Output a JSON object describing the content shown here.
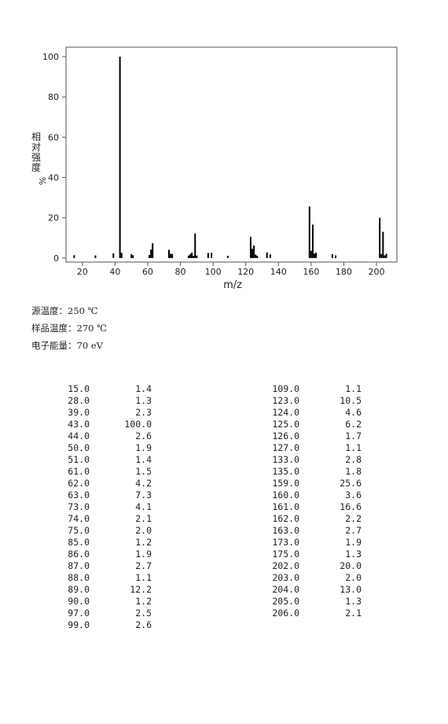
{
  "chart_data": {
    "type": "bar",
    "xlabel": "m/z",
    "ylabel_chars": [
      "相",
      "对",
      "强",
      "度"
    ],
    "ylabel_unit": "%",
    "x": [
      15,
      28,
      39,
      43,
      44,
      50,
      51,
      61,
      62,
      63,
      73,
      74,
      75,
      85,
      86,
      87,
      88,
      89,
      90,
      97,
      99,
      109,
      123,
      124,
      125,
      126,
      127,
      133,
      135,
      159,
      160,
      161,
      162,
      163,
      173,
      175,
      202,
      203,
      204,
      205,
      206
    ],
    "x_labels": [
      "15.0",
      "28.0",
      "39.0",
      "43.0",
      "44.0",
      "50.0",
      "51.0",
      "61.0",
      "62.0",
      "63.0",
      "73.0",
      "74.0",
      "75.0",
      "85.0",
      "86.0",
      "87.0",
      "88.0",
      "89.0",
      "90.0",
      "97.0",
      "99.0",
      "109.0",
      "123.0",
      "124.0",
      "125.0",
      "126.0",
      "127.0",
      "133.0",
      "135.0",
      "159.0",
      "160.0",
      "161.0",
      "162.0",
      "163.0",
      "173.0",
      "175.0",
      "202.0",
      "203.0",
      "204.0",
      "205.0",
      "206.0"
    ],
    "values": [
      1.4,
      1.3,
      2.3,
      100.0,
      2.6,
      1.9,
      1.4,
      1.5,
      4.2,
      7.3,
      4.1,
      2.1,
      2.0,
      1.2,
      1.9,
      2.7,
      1.1,
      12.2,
      1.2,
      2.5,
      2.6,
      1.1,
      10.5,
      4.6,
      6.2,
      1.7,
      1.1,
      2.8,
      1.8,
      25.6,
      3.6,
      16.6,
      2.2,
      2.7,
      1.9,
      1.3,
      20.0,
      2.0,
      13.0,
      1.3,
      2.1
    ],
    "value_labels": [
      "1.4",
      "1.3",
      "2.3",
      "100.0",
      "2.6",
      "1.9",
      "1.4",
      "1.5",
      "4.2",
      "7.3",
      "4.1",
      "2.1",
      "2.0",
      "1.2",
      "1.9",
      "2.7",
      "1.1",
      "12.2",
      "1.2",
      "2.5",
      "2.6",
      "1.1",
      "10.5",
      "4.6",
      "6.2",
      "1.7",
      "1.1",
      "2.8",
      "1.8",
      "25.6",
      "3.6",
      "16.6",
      "2.2",
      "2.7",
      "1.9",
      "1.3",
      "20.0",
      "2.0",
      "13.0",
      "1.3",
      "2.1"
    ],
    "color": "#000000",
    "xlim": [
      10,
      212.5
    ],
    "xticks": [
      20,
      40,
      60,
      80,
      100,
      120,
      140,
      160,
      180,
      200
    ],
    "ylim": [
      -2,
      104.7
    ],
    "yticks": [
      0,
      20,
      40,
      60,
      80,
      100
    ],
    "conditions": [
      "源温度：250 ℃",
      "样品温度：270 ℃",
      "电子能量：70 eV"
    ]
  }
}
